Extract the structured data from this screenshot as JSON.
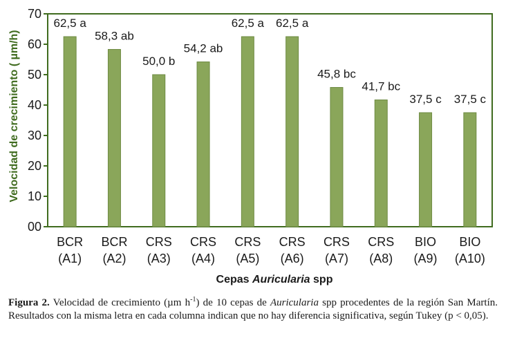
{
  "chart_data": {
    "type": "bar",
    "categories": [
      [
        "BCR",
        "(A1)"
      ],
      [
        "BCR",
        "(A2)"
      ],
      [
        "CRS",
        "(A3)"
      ],
      [
        "CRS",
        "(A4)"
      ],
      [
        "CRS",
        "(A5)"
      ],
      [
        "CRS",
        "(A6)"
      ],
      [
        "CRS",
        "(A7)"
      ],
      [
        "CRS",
        "(A8)"
      ],
      [
        "BIO",
        "(A9)"
      ],
      [
        "BIO",
        "(A10)"
      ]
    ],
    "values": [
      62.5,
      58.3,
      50.0,
      54.2,
      62.5,
      62.5,
      45.8,
      41.7,
      37.5,
      37.5
    ],
    "data_labels": [
      "62,5 a",
      "58,3 ab",
      "50,0 b",
      "54,2 ab",
      "62,5 a",
      "62,5 a",
      "45,8 bc",
      "41,7 bc",
      "37,5 c",
      "37,5 c"
    ],
    "ylabel": "Velocidad de crecimiento ( µm/h)",
    "xlabel_prefix": "Cepas ",
    "xlabel_italic": "Auricularia",
    "xlabel_suffix": " spp",
    "ylim": [
      0,
      70
    ],
    "yticks": [
      "00",
      "10",
      "20",
      "30",
      "40",
      "50",
      "60",
      "70"
    ],
    "ytick_values": [
      0,
      10,
      20,
      30,
      40,
      50,
      60,
      70
    ],
    "grid": false,
    "bar_color": "#8aa65a",
    "bar_edge_color": "#6e8b43",
    "axis_color": "#3f6b1e"
  },
  "caption": {
    "label": "Figura 2.",
    "text_1": " Velocidad de crecimiento (µm h",
    "sup": "-1",
    "text_2": ") de 10 cepas de ",
    "italic": "Auricularia",
    "text_3": " spp procedentes de la región San Martín. Resultados con la misma letra en cada columna indican que no hay diferencia significativa, según Tukey (p < 0,05)."
  }
}
